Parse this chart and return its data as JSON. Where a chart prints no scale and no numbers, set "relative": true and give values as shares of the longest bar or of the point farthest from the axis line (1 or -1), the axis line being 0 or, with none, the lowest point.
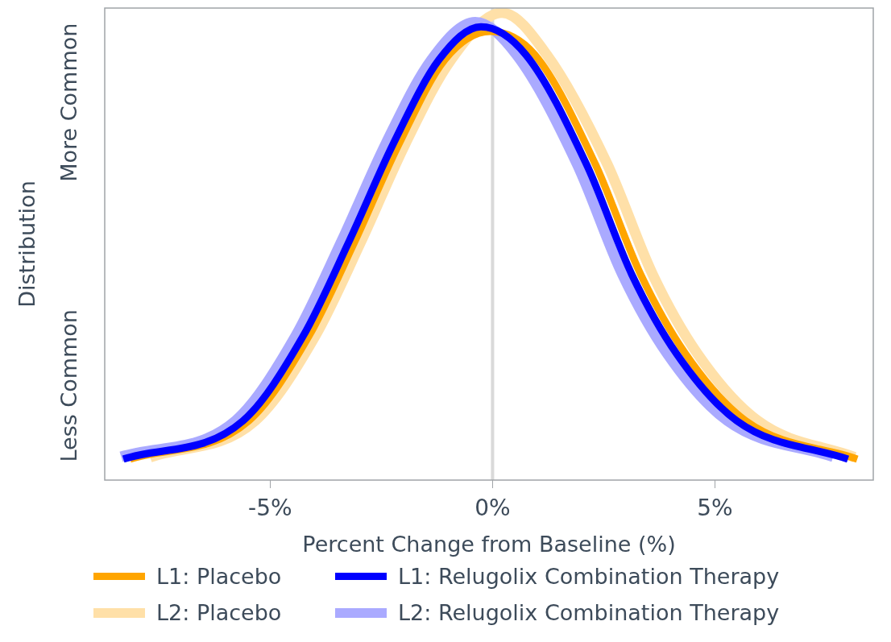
{
  "chart_data": {
    "type": "line",
    "relative": true,
    "xlabel": "Percent Change from Baseline (%)",
    "ylabel": "Distribution",
    "xlim": [
      -8.72,
      8.56
    ],
    "xticks": [
      {
        "value": -5,
        "label": "-5%"
      },
      {
        "value": 0,
        "label": "0%"
      },
      {
        "value": 5,
        "label": "5%"
      }
    ],
    "grid": false,
    "legend": "bottom",
    "marker": "none",
    "line_style": "solid",
    "annotations": [
      "Less Common",
      "More Common"
    ],
    "ref_lines": [
      {
        "axis": "x",
        "value": 0,
        "label": null,
        "color": "#d9d9d9"
      }
    ],
    "series": [
      {
        "name": "L1: Placebo",
        "color": "#ffa500",
        "x": [
          -8.15,
          -5.48,
          -4.13,
          -3.1,
          -2.1,
          -1.07,
          -0.05,
          0.95,
          2.31,
          3.33,
          4.34,
          5.69,
          8.2
        ],
        "values": [
          0.045,
          0.127,
          0.308,
          0.51,
          0.72,
          0.9,
          0.96,
          0.91,
          0.676,
          0.44,
          0.27,
          0.127,
          0.045
        ]
      },
      {
        "name": "L1: Relugolix Combination Therapy",
        "color": "#0000ff",
        "x": [
          -8.3,
          -5.61,
          -4.26,
          -3.23,
          -2.23,
          -1.2,
          -0.26,
          0.75,
          2.11,
          3.13,
          4.14,
          5.49,
          7.99
        ],
        "values": [
          0.045,
          0.127,
          0.308,
          0.51,
          0.72,
          0.9,
          0.97,
          0.91,
          0.676,
          0.44,
          0.27,
          0.127,
          0.045
        ]
      },
      {
        "name": "L2: Placebo",
        "color": "#ffe0a8",
        "x": [
          -7.7,
          -5.34,
          -3.99,
          -2.96,
          -1.96,
          -0.93,
          0.21,
          1.22,
          2.58,
          3.6,
          4.61,
          5.96,
          8.14
        ],
        "values": [
          0.049,
          0.127,
          0.308,
          0.51,
          0.72,
          0.9,
          1,
          0.91,
          0.676,
          0.44,
          0.27,
          0.127,
          0.049
        ]
      },
      {
        "name": "L2: Relugolix Combination Therapy",
        "color": "#aaaaff",
        "x": [
          -8.35,
          -5.78,
          -4.43,
          -3.4,
          -2.4,
          -1.37,
          -0.39,
          0.54,
          1.9,
          2.92,
          3.93,
          5.28,
          7.66
        ],
        "values": [
          0.05,
          0.127,
          0.308,
          0.51,
          0.72,
          0.9,
          0.98,
          0.91,
          0.676,
          0.44,
          0.27,
          0.127,
          0.05
        ]
      }
    ]
  }
}
